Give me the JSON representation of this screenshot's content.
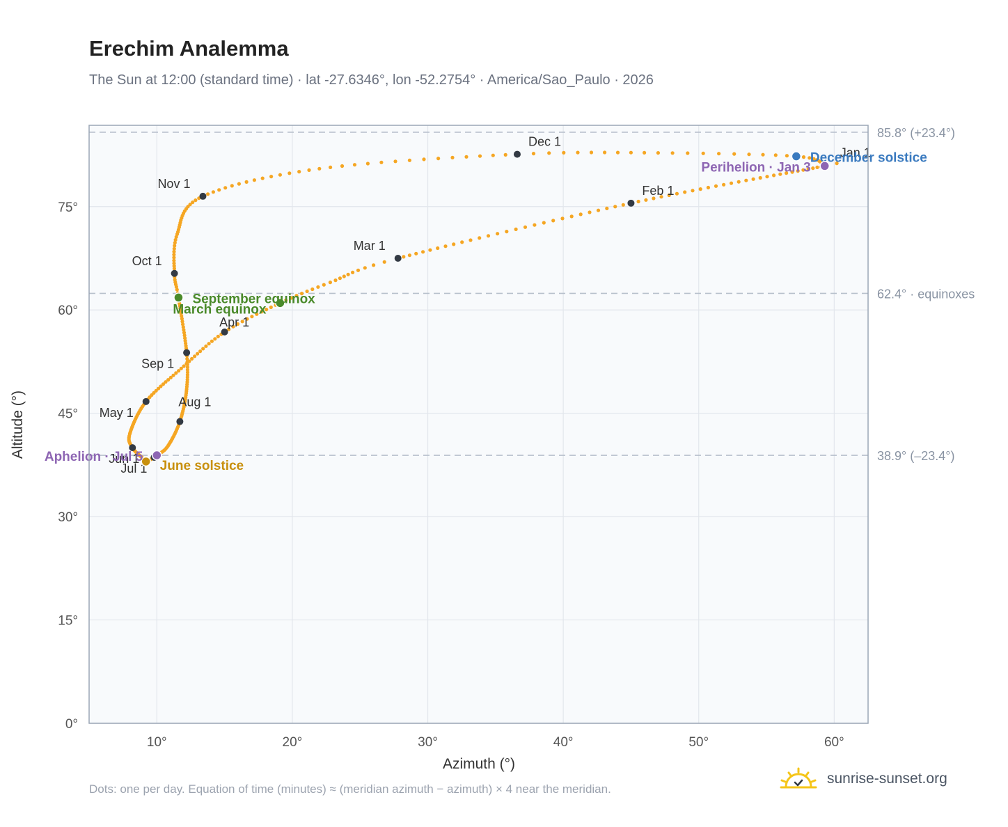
{
  "title": "Erechim Analemma",
  "subtitle": "The Sun at 12:00 (standard time) · lat -27.6346°, lon -52.2754° · America/Sao_Paulo · 2026",
  "footnote": "Dots: one per day. Equation of time (minutes) ≈ (meridian azimuth − azimuth) × 4 near the meridian.",
  "brand": {
    "text": "sunrise-sunset.org",
    "icon": "sun-logo-icon"
  },
  "colors": {
    "path": "#f5a623",
    "month_marker": "#333a44",
    "equinox": "#4a8a2a",
    "solstice_june": "#c8900e",
    "solstice_december": "#3a7abf",
    "apsis": "#8e66b3",
    "reference_line": "#b7c0cc",
    "plot_bg": "#f8fafc",
    "grid": "#e2e6ec"
  },
  "chart_data": {
    "type": "scatter",
    "title": "Erechim Analemma",
    "xlabel": "Azimuth (°)",
    "ylabel": "Altitude (°)",
    "xlim": [
      5,
      62.5
    ],
    "ylim": [
      0,
      86.8
    ],
    "x_ticks": [
      {
        "value": 10,
        "label": "10°"
      },
      {
        "value": 20,
        "label": "20°"
      },
      {
        "value": 30,
        "label": "30°"
      },
      {
        "value": 40,
        "label": "40°"
      },
      {
        "value": 50,
        "label": "50°"
      },
      {
        "value": 60,
        "label": "60°"
      }
    ],
    "y_ticks": [
      {
        "value": 0,
        "label": "0°"
      },
      {
        "value": 15,
        "label": "15°"
      },
      {
        "value": 30,
        "label": "30°"
      },
      {
        "value": 45,
        "label": "45°"
      },
      {
        "value": 60,
        "label": "60°"
      },
      {
        "value": 75,
        "label": "75°"
      }
    ],
    "grid": true,
    "reference_lines": [
      {
        "altitude": 85.8,
        "label": "85.8° (+23.4°)"
      },
      {
        "altitude": 62.4,
        "label": "62.4° · equinoxes"
      },
      {
        "altitude": 38.9,
        "label": "38.9° (–23.4°)"
      }
    ],
    "path_keypoints": [
      {
        "day": 1,
        "az": 59.3,
        "alt": 81.0
      },
      {
        "day": 3,
        "az": 59.3,
        "alt": 80.9
      },
      {
        "day": 32,
        "az": 45.0,
        "alt": 75.5
      },
      {
        "day": 60,
        "az": 27.8,
        "alt": 67.5
      },
      {
        "day": 70,
        "az": 22.8,
        "alt": 64.0
      },
      {
        "day": 79,
        "az": 19.1,
        "alt": 61.0
      },
      {
        "day": 91,
        "az": 15.0,
        "alt": 56.8
      },
      {
        "day": 106,
        "az": 11.8,
        "alt": 51.5
      },
      {
        "day": 121,
        "az": 9.2,
        "alt": 46.7
      },
      {
        "day": 141,
        "az": 8.0,
        "alt": 42.0
      },
      {
        "day": 152,
        "az": 8.2,
        "alt": 40.0
      },
      {
        "day": 167,
        "az": 9.0,
        "alt": 38.4
      },
      {
        "day": 172,
        "az": 9.2,
        "alt": 38.0
      },
      {
        "day": 182,
        "az": 9.8,
        "alt": 38.6
      },
      {
        "day": 186,
        "az": 10.0,
        "alt": 38.9
      },
      {
        "day": 197,
        "az": 10.8,
        "alt": 40.2
      },
      {
        "day": 213,
        "az": 11.7,
        "alt": 43.8
      },
      {
        "day": 230,
        "az": 12.2,
        "alt": 48.5
      },
      {
        "day": 244,
        "az": 12.2,
        "alt": 53.8
      },
      {
        "day": 266,
        "az": 11.6,
        "alt": 61.8
      },
      {
        "day": 274,
        "az": 11.3,
        "alt": 65.3
      },
      {
        "day": 288,
        "az": 11.5,
        "alt": 71.0
      },
      {
        "day": 305,
        "az": 13.4,
        "alt": 76.5
      },
      {
        "day": 320,
        "az": 22.0,
        "alt": 80.5
      },
      {
        "day": 335,
        "az": 36.6,
        "alt": 82.6
      },
      {
        "day": 345,
        "az": 47.0,
        "alt": 82.8
      },
      {
        "day": 355,
        "az": 57.2,
        "alt": 82.3
      },
      {
        "day": 365,
        "az": 59.3,
        "alt": 81.0
      }
    ],
    "month_markers": [
      {
        "label": "Jan 1",
        "az": 59.3,
        "alt": 81.0
      },
      {
        "label": "Feb 1",
        "az": 45.0,
        "alt": 75.5
      },
      {
        "label": "Mar 1",
        "az": 27.8,
        "alt": 67.5
      },
      {
        "label": "Apr 1",
        "az": 15.0,
        "alt": 56.8
      },
      {
        "label": "May 1",
        "az": 9.2,
        "alt": 46.7
      },
      {
        "label": "Jun 1",
        "az": 8.2,
        "alt": 40.0
      },
      {
        "label": "Jul 1",
        "az": 9.8,
        "alt": 38.6
      },
      {
        "label": "Aug 1",
        "az": 11.7,
        "alt": 43.8
      },
      {
        "label": "Sep 1",
        "az": 12.2,
        "alt": 53.8
      },
      {
        "label": "Oct 1",
        "az": 11.3,
        "alt": 65.3
      },
      {
        "label": "Nov 1",
        "az": 13.4,
        "alt": 76.5
      },
      {
        "label": "Dec 1",
        "az": 36.6,
        "alt": 82.6
      }
    ],
    "events": [
      {
        "label": "March equinox",
        "az": 19.1,
        "alt": 61.0,
        "kind": "equinox"
      },
      {
        "label": "September equinox",
        "az": 11.6,
        "alt": 61.8,
        "kind": "equinox"
      },
      {
        "label": "June solstice",
        "az": 9.2,
        "alt": 38.0,
        "kind": "solstice_june"
      },
      {
        "label": "December solstice",
        "az": 57.2,
        "alt": 82.3,
        "kind": "solstice_december"
      },
      {
        "label": "Perihelion · Jan 3",
        "az": 59.3,
        "alt": 80.9,
        "kind": "apsis"
      },
      {
        "label": "Aphelion · Jul 5",
        "az": 10.0,
        "alt": 38.9,
        "kind": "apsis"
      }
    ]
  }
}
